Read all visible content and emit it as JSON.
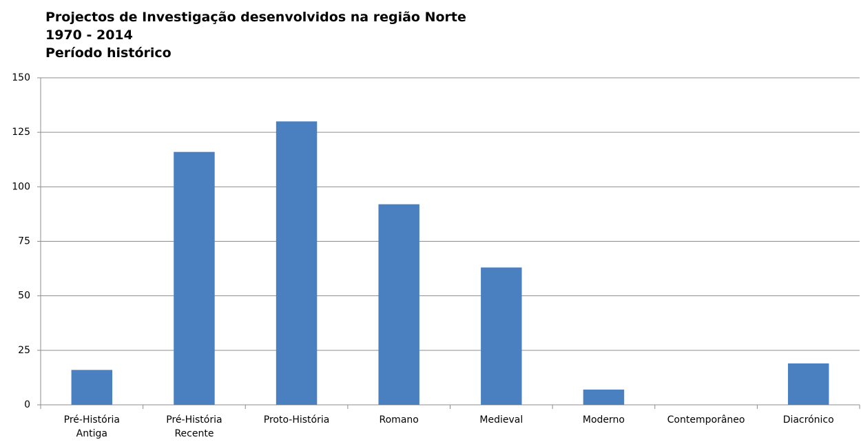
{
  "chart_data": {
    "type": "bar",
    "title_lines": [
      "Projectos de Investigação desenvolvidos na região Norte",
      "1970 - 2014",
      "Período histórico"
    ],
    "categories": [
      "Pré-História Antiga",
      "Pré-História Recente",
      "Proto-História",
      "Romano",
      "Medieval",
      "Moderno",
      "Contemporâneo",
      "Diacrónico"
    ],
    "values": [
      16,
      116,
      130,
      92,
      63,
      7,
      0,
      19
    ],
    "color": "#4a80c0",
    "ylim": [
      0,
      150
    ],
    "yticks": [
      0,
      25,
      50,
      75,
      100,
      125,
      150
    ],
    "grid": true
  }
}
